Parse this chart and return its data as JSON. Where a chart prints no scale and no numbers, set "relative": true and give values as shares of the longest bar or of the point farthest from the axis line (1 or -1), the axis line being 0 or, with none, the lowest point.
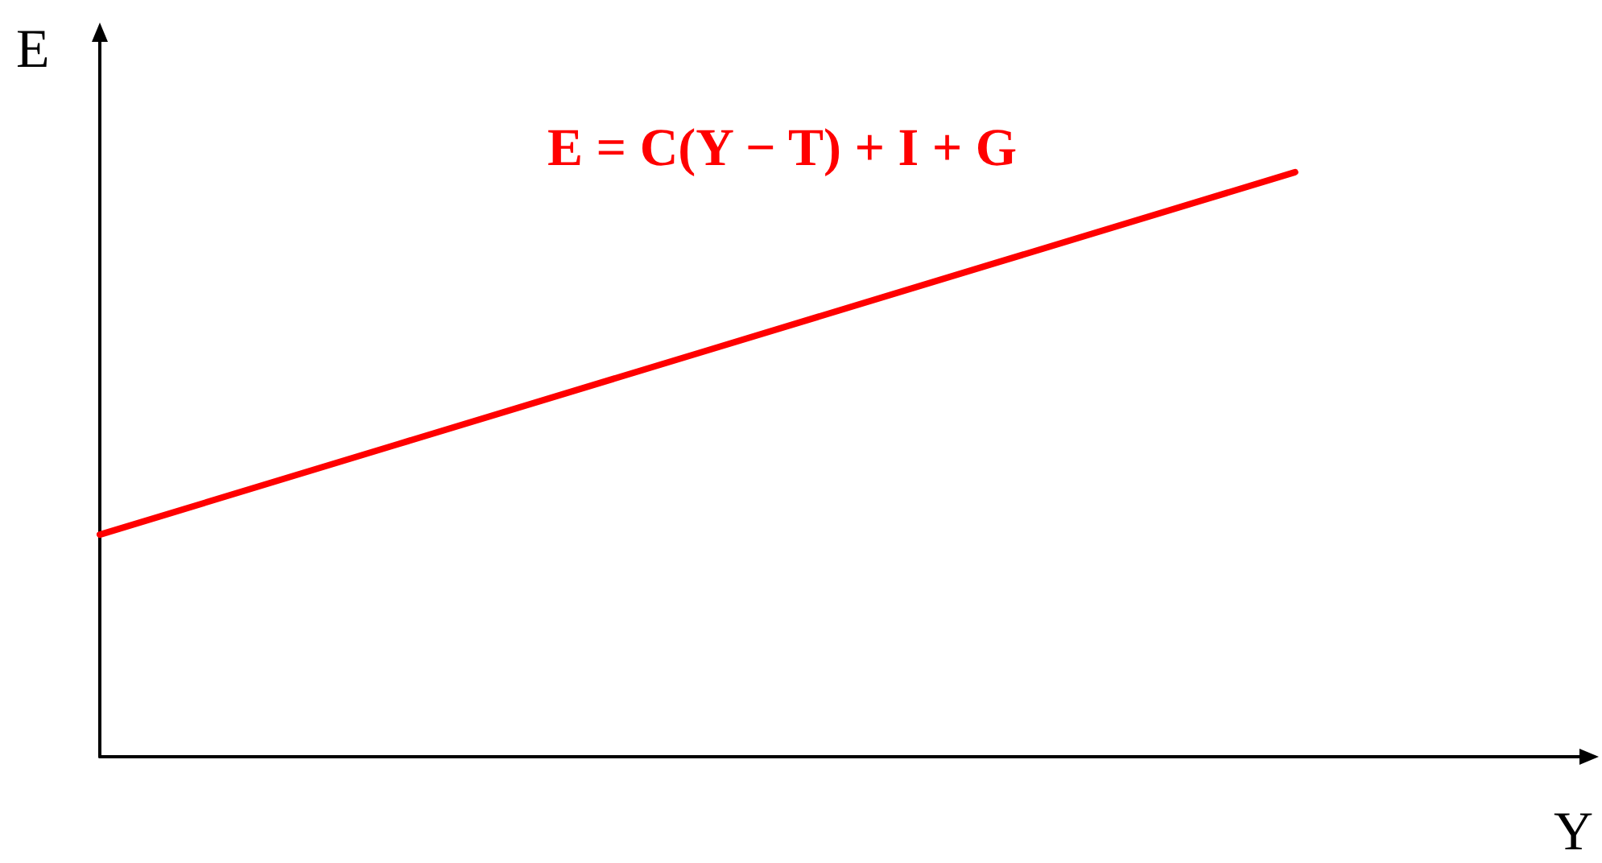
{
  "chart_data": {
    "type": "line",
    "relative": true,
    "xlabel": "Y",
    "ylabel": "E",
    "categories": [
      null,
      null,
      null,
      null,
      null,
      null
    ],
    "series": [
      {
        "name": "E = C(Y − T) + I + G",
        "color": "#ff0000",
        "values": [
          0.38,
          0.535,
          0.69,
          0.845,
          1,
          null
        ]
      }
    ],
    "grid": false,
    "legend": false,
    "marker": "none",
    "line_style": "solid"
  }
}
